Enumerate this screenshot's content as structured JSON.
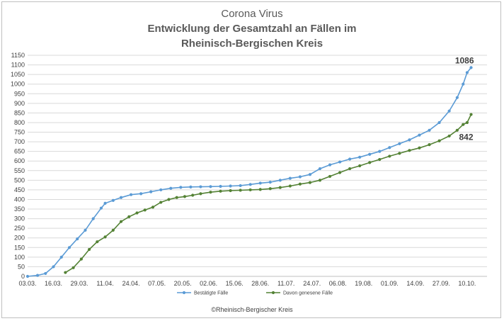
{
  "chart_data": {
    "type": "line",
    "title": "Corona Virus",
    "subtitle_line1": "Entwicklung der Gesamtzahl an Fällen im",
    "subtitle_line2": "Rheinisch-Bergischen Kreis",
    "ylim": [
      0,
      1150
    ],
    "y_ticks": [
      0,
      50,
      100,
      150,
      200,
      250,
      300,
      350,
      400,
      450,
      500,
      550,
      600,
      650,
      700,
      750,
      800,
      850,
      900,
      950,
      1000,
      1050,
      1100,
      1150
    ],
    "x_tick_labels": [
      "03.03.",
      "16.03.",
      "29.03.",
      "11.04.",
      "24.04.",
      "07.05.",
      "20.05.",
      "02.06.",
      "15.06.",
      "28.06.",
      "11.07.",
      "24.07.",
      "06.08.",
      "19.08.",
      "01.09.",
      "14.09.",
      "27.09.",
      "10.10."
    ],
    "x_start": "03.03.",
    "x_tick_step_days": 13,
    "grid": true,
    "legend_position": "bottom",
    "series": [
      {
        "name": "Bestätigte Fälle",
        "color": "#5b9bd5",
        "points": [
          [
            0,
            0
          ],
          [
            5,
            5
          ],
          [
            9,
            15
          ],
          [
            13,
            50
          ],
          [
            17,
            100
          ],
          [
            21,
            150
          ],
          [
            25,
            195
          ],
          [
            29,
            240
          ],
          [
            33,
            300
          ],
          [
            37,
            355
          ],
          [
            39,
            380
          ],
          [
            43,
            395
          ],
          [
            47,
            410
          ],
          [
            52,
            425
          ],
          [
            57,
            430
          ],
          [
            62,
            440
          ],
          [
            67,
            450
          ],
          [
            72,
            458
          ],
          [
            77,
            463
          ],
          [
            82,
            465
          ],
          [
            87,
            466
          ],
          [
            92,
            467
          ],
          [
            97,
            468
          ],
          [
            102,
            470
          ],
          [
            107,
            472
          ],
          [
            112,
            478
          ],
          [
            117,
            485
          ],
          [
            122,
            490
          ],
          [
            127,
            500
          ],
          [
            132,
            510
          ],
          [
            137,
            518
          ],
          [
            142,
            530
          ],
          [
            147,
            560
          ],
          [
            152,
            580
          ],
          [
            157,
            595
          ],
          [
            162,
            610
          ],
          [
            167,
            620
          ],
          [
            172,
            635
          ],
          [
            177,
            650
          ],
          [
            182,
            670
          ],
          [
            187,
            690
          ],
          [
            192,
            710
          ],
          [
            197,
            735
          ],
          [
            202,
            760
          ],
          [
            207,
            800
          ],
          [
            212,
            860
          ],
          [
            216,
            930
          ],
          [
            219,
            1000
          ],
          [
            221,
            1060
          ],
          [
            223,
            1086
          ]
        ],
        "end_label": "1086"
      },
      {
        "name": "Davon genesene Fälle",
        "color": "#548235",
        "points": [
          [
            19,
            20
          ],
          [
            23,
            45
          ],
          [
            27,
            90
          ],
          [
            31,
            140
          ],
          [
            35,
            180
          ],
          [
            39,
            205
          ],
          [
            43,
            240
          ],
          [
            47,
            285
          ],
          [
            51,
            310
          ],
          [
            55,
            330
          ],
          [
            59,
            345
          ],
          [
            63,
            360
          ],
          [
            67,
            385
          ],
          [
            71,
            400
          ],
          [
            75,
            410
          ],
          [
            79,
            415
          ],
          [
            83,
            422
          ],
          [
            87,
            430
          ],
          [
            92,
            438
          ],
          [
            97,
            443
          ],
          [
            102,
            446
          ],
          [
            107,
            448
          ],
          [
            112,
            450
          ],
          [
            117,
            452
          ],
          [
            122,
            456
          ],
          [
            127,
            462
          ],
          [
            132,
            470
          ],
          [
            137,
            480
          ],
          [
            142,
            488
          ],
          [
            147,
            500
          ],
          [
            152,
            520
          ],
          [
            157,
            540
          ],
          [
            162,
            560
          ],
          [
            167,
            575
          ],
          [
            172,
            592
          ],
          [
            177,
            608
          ],
          [
            182,
            625
          ],
          [
            187,
            640
          ],
          [
            192,
            655
          ],
          [
            197,
            668
          ],
          [
            202,
            685
          ],
          [
            207,
            705
          ],
          [
            212,
            730
          ],
          [
            216,
            760
          ],
          [
            219,
            790
          ],
          [
            221,
            800
          ],
          [
            223,
            842
          ]
        ],
        "end_label": "842"
      }
    ]
  },
  "copyright": "©Rheinisch-Bergischer Kreis"
}
